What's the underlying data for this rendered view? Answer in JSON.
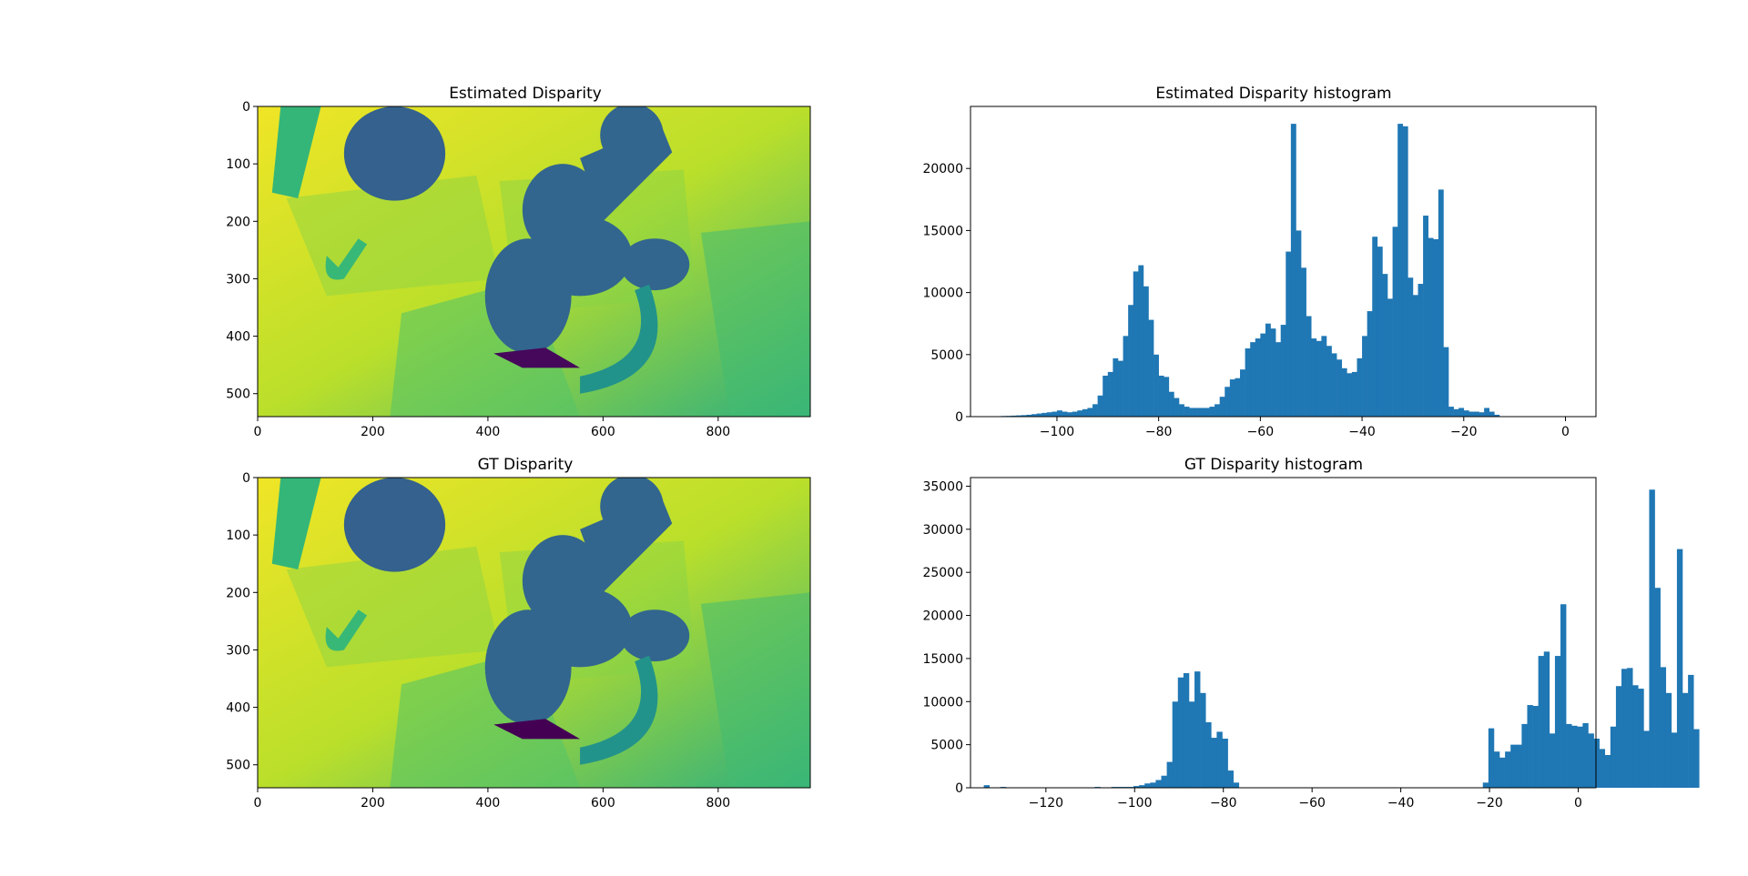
{
  "figure": {
    "background": "#ffffff",
    "bar_color": "#1f77b4"
  },
  "chart_data": [
    {
      "type": "heatmap",
      "title": "Estimated Disparity",
      "colormap": "viridis",
      "xlim": [
        0,
        960
      ],
      "ylim": [
        540,
        0
      ],
      "xticks": [
        0,
        200,
        400,
        600,
        800
      ],
      "yticks": [
        0,
        100,
        200,
        300,
        400,
        500
      ],
      "regions": [
        {
          "name": "background",
          "value": -18
        },
        {
          "name": "top-left panel",
          "value": -45
        },
        {
          "name": "large disc",
          "value": -80
        },
        {
          "name": "motorcycle",
          "value": -78
        },
        {
          "name": "small hook shape",
          "value": -44
        },
        {
          "name": "tail",
          "value": -60
        },
        {
          "name": "darkest spot",
          "value": -108
        }
      ]
    },
    {
      "type": "bar",
      "title": "Estimated Disparity histogram",
      "xlim": [
        -117,
        6
      ],
      "ylim": [
        0,
        25000
      ],
      "xticks": [
        -100,
        -80,
        -60,
        -40,
        -20,
        0
      ],
      "yticks": [
        0,
        5000,
        10000,
        15000,
        20000
      ],
      "bin_start": -111,
      "bin_width": 1,
      "counts": [
        50,
        60,
        80,
        100,
        120,
        150,
        200,
        250,
        300,
        350,
        400,
        500,
        400,
        350,
        400,
        500,
        600,
        700,
        1000,
        1700,
        3300,
        3600,
        4700,
        4500,
        6500,
        9000,
        11700,
        12200,
        10500,
        7800,
        5000,
        3300,
        3200,
        2000,
        1500,
        1000,
        800,
        700,
        700,
        700,
        700,
        800,
        1000,
        1600,
        2400,
        3000,
        3100,
        3800,
        5500,
        6000,
        6300,
        6700,
        7500,
        7100,
        6000,
        7400,
        13300,
        23600,
        15000,
        12000,
        8100,
        6300,
        6100,
        6500,
        5700,
        5100,
        4600,
        3900,
        3500,
        3600,
        4700,
        6500,
        8500,
        14500,
        13700,
        11500,
        9500,
        15300,
        23600,
        23400,
        11200,
        9800,
        10700,
        16200,
        14400,
        14300,
        18300,
        5600,
        800,
        600,
        700,
        500,
        400,
        400,
        350,
        700,
        400,
        150
      ]
    },
    {
      "type": "heatmap",
      "title": "GT Disparity",
      "colormap": "viridis",
      "xlim": [
        0,
        960
      ],
      "ylim": [
        540,
        0
      ],
      "xticks": [
        0,
        200,
        400,
        600,
        800
      ],
      "yticks": [
        0,
        100,
        200,
        300,
        400,
        500
      ],
      "regions": [
        {
          "name": "background",
          "value": -18
        },
        {
          "name": "top-left panel",
          "value": -45
        },
        {
          "name": "large disc",
          "value": -80
        },
        {
          "name": "motorcycle",
          "value": -78
        },
        {
          "name": "small hook shape",
          "value": -44
        },
        {
          "name": "tail",
          "value": -60
        },
        {
          "name": "darkest spot",
          "value": -125
        }
      ]
    },
    {
      "type": "bar",
      "title": "GT Disparity histogram",
      "xlim": [
        -137,
        4
      ],
      "ylim": [
        0,
        36000
      ],
      "xticks": [
        -120,
        -100,
        -80,
        -60,
        -40,
        -20,
        0
      ],
      "yticks": [
        0,
        5000,
        10000,
        15000,
        20000,
        25000,
        30000,
        35000
      ],
      "bin_start": -134,
      "bin_width": 1.25,
      "counts": [
        300,
        0,
        0,
        100,
        50,
        0,
        0,
        0,
        0,
        0,
        0,
        0,
        0,
        0,
        0,
        0,
        0,
        0,
        0,
        0,
        100,
        0,
        0,
        100,
        100,
        100,
        100,
        200,
        300,
        500,
        600,
        900,
        1400,
        3000,
        10000,
        12800,
        13300,
        10000,
        13500,
        11000,
        7600,
        5800,
        6500,
        5700,
        2000,
        600,
        0,
        0,
        0,
        0,
        0,
        0,
        0,
        0,
        0,
        0,
        0,
        0,
        0,
        0,
        0,
        0,
        0,
        0,
        0,
        0,
        0,
        0,
        0,
        0,
        0,
        0,
        0,
        0,
        0,
        0,
        0,
        0,
        0,
        0,
        0,
        0,
        0,
        0,
        0,
        0,
        0,
        0,
        0,
        0,
        600,
        6900,
        4200,
        3500,
        4200,
        5000,
        5000,
        7400,
        9600,
        9500,
        15300,
        15800,
        6300,
        15300,
        21300,
        7400,
        7200,
        7100,
        7500,
        6300,
        5700,
        4500,
        3800,
        7100,
        11800,
        13800,
        13900,
        11900,
        11500,
        6600,
        34600,
        23200,
        14000,
        11000,
        6400,
        27700,
        11000,
        13100,
        6800
      ]
    }
  ]
}
